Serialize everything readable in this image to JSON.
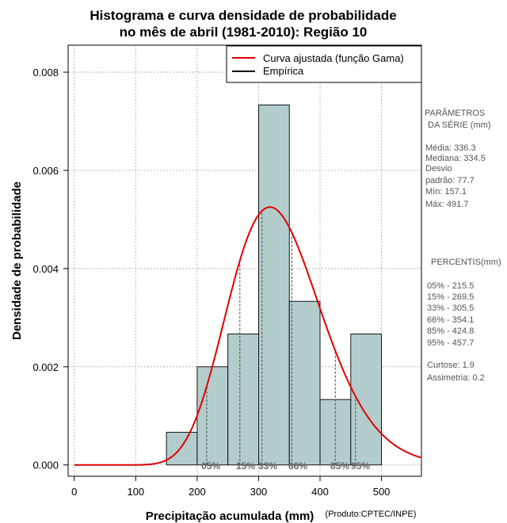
{
  "chart_data": {
    "type": "bar",
    "title_line1": "Histograma e curva densidade de probabilidade",
    "title_line2": "no mês de abril (1981-2010): Região 10",
    "xlabel": "Precipitação acumulada (mm)",
    "ylabel": "Densidade de probabilidade",
    "credit": "(Produto:CPTEC/INPE)",
    "xlim": [
      -10,
      565
    ],
    "ylim": [
      -0.00023,
      0.00855
    ],
    "x_ticks": [
      0,
      100,
      200,
      300,
      400,
      500
    ],
    "y_ticks": [
      0.0,
      0.002,
      0.004,
      0.006,
      0.008
    ],
    "y_tick_labels": [
      "0.000",
      "0.002",
      "0.004",
      "0.006",
      "0.008"
    ],
    "bins": [
      {
        "from": 150,
        "to": 200,
        "density": 0.000667
      },
      {
        "from": 200,
        "to": 250,
        "density": 0.002
      },
      {
        "from": 250,
        "to": 300,
        "density": 0.002667
      },
      {
        "from": 300,
        "to": 350,
        "density": 0.007333
      },
      {
        "from": 350,
        "to": 400,
        "density": 0.003333
      },
      {
        "from": 400,
        "to": 450,
        "density": 0.001333
      },
      {
        "from": 450,
        "to": 500,
        "density": 0.002667
      }
    ],
    "bar_color": "#b3cdcc",
    "curve_color": "#e00000",
    "gamma_mean": 336.3,
    "gamma_sd": 77.7,
    "legend": [
      {
        "label": "Curva ajustada (função Gama)",
        "color": "#e00000"
      },
      {
        "label": "Empírica",
        "color": "#000000"
      }
    ],
    "percentile_lines": [
      {
        "label": "05%",
        "value": 215.5
      },
      {
        "label": "15%",
        "value": 269.5
      },
      {
        "label": "33%",
        "value": 305.5
      },
      {
        "label": "66%",
        "value": 354.1
      },
      {
        "label": "85%",
        "value": 424.8
      },
      {
        "label": "95%",
        "value": 457.7
      }
    ]
  },
  "side_panel": {
    "params_title_1": "PARÂMETROS",
    "params_title_2": "DA SÉRIE (mm)",
    "stats": [
      "Média:  336.3",
      "Mediana:  334.5",
      "Desvio",
      "padrão:  77.7",
      "Mín:  157.1",
      "Máx:  491.7"
    ],
    "percentis_title": "PERCENTIS(mm)",
    "percentis": [
      "05% -  215.5",
      "15% -  269.5",
      "33% -  305.5",
      "66% -  354.1",
      "85% -  424.8",
      "95% -  457.7"
    ],
    "shape": [
      "Curtose:  1.9",
      "Assimetria:  0.2"
    ]
  }
}
